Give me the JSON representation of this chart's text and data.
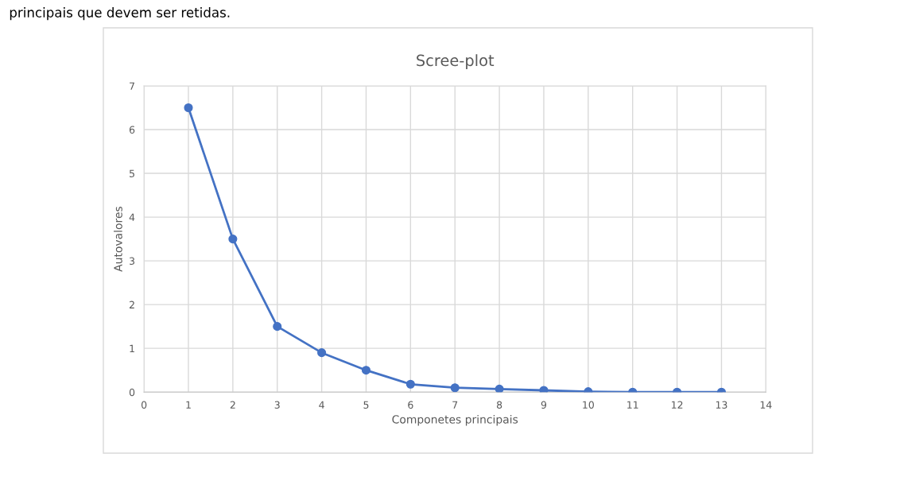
{
  "chart_data": {
    "type": "line",
    "title": "Scree-plot",
    "xlabel": "Componetes principais",
    "ylabel": "Autovalores",
    "annotations": [
      "principais que devem ser retidas."
    ],
    "x": [
      1,
      2,
      3,
      4,
      5,
      6,
      7,
      8,
      9,
      10,
      11,
      12,
      13
    ],
    "series": [
      {
        "color": "#4472c4",
        "values": [
          6.5,
          3.5,
          1.5,
          0.9,
          0.5,
          0.18,
          0.1,
          0.07,
          0.04,
          0.01,
          0,
          0,
          0
        ]
      }
    ],
    "xlim": [
      0,
      14
    ],
    "xticks": [
      0,
      1,
      2,
      3,
      4,
      5,
      6,
      7,
      8,
      9,
      10,
      11,
      12,
      13,
      14
    ],
    "ylim": [
      0,
      7
    ],
    "yticks": [
      0,
      1,
      2,
      3,
      4,
      5,
      6,
      7
    ],
    "grid": true,
    "marker": "circle",
    "line_style": "solid",
    "legend": false
  }
}
